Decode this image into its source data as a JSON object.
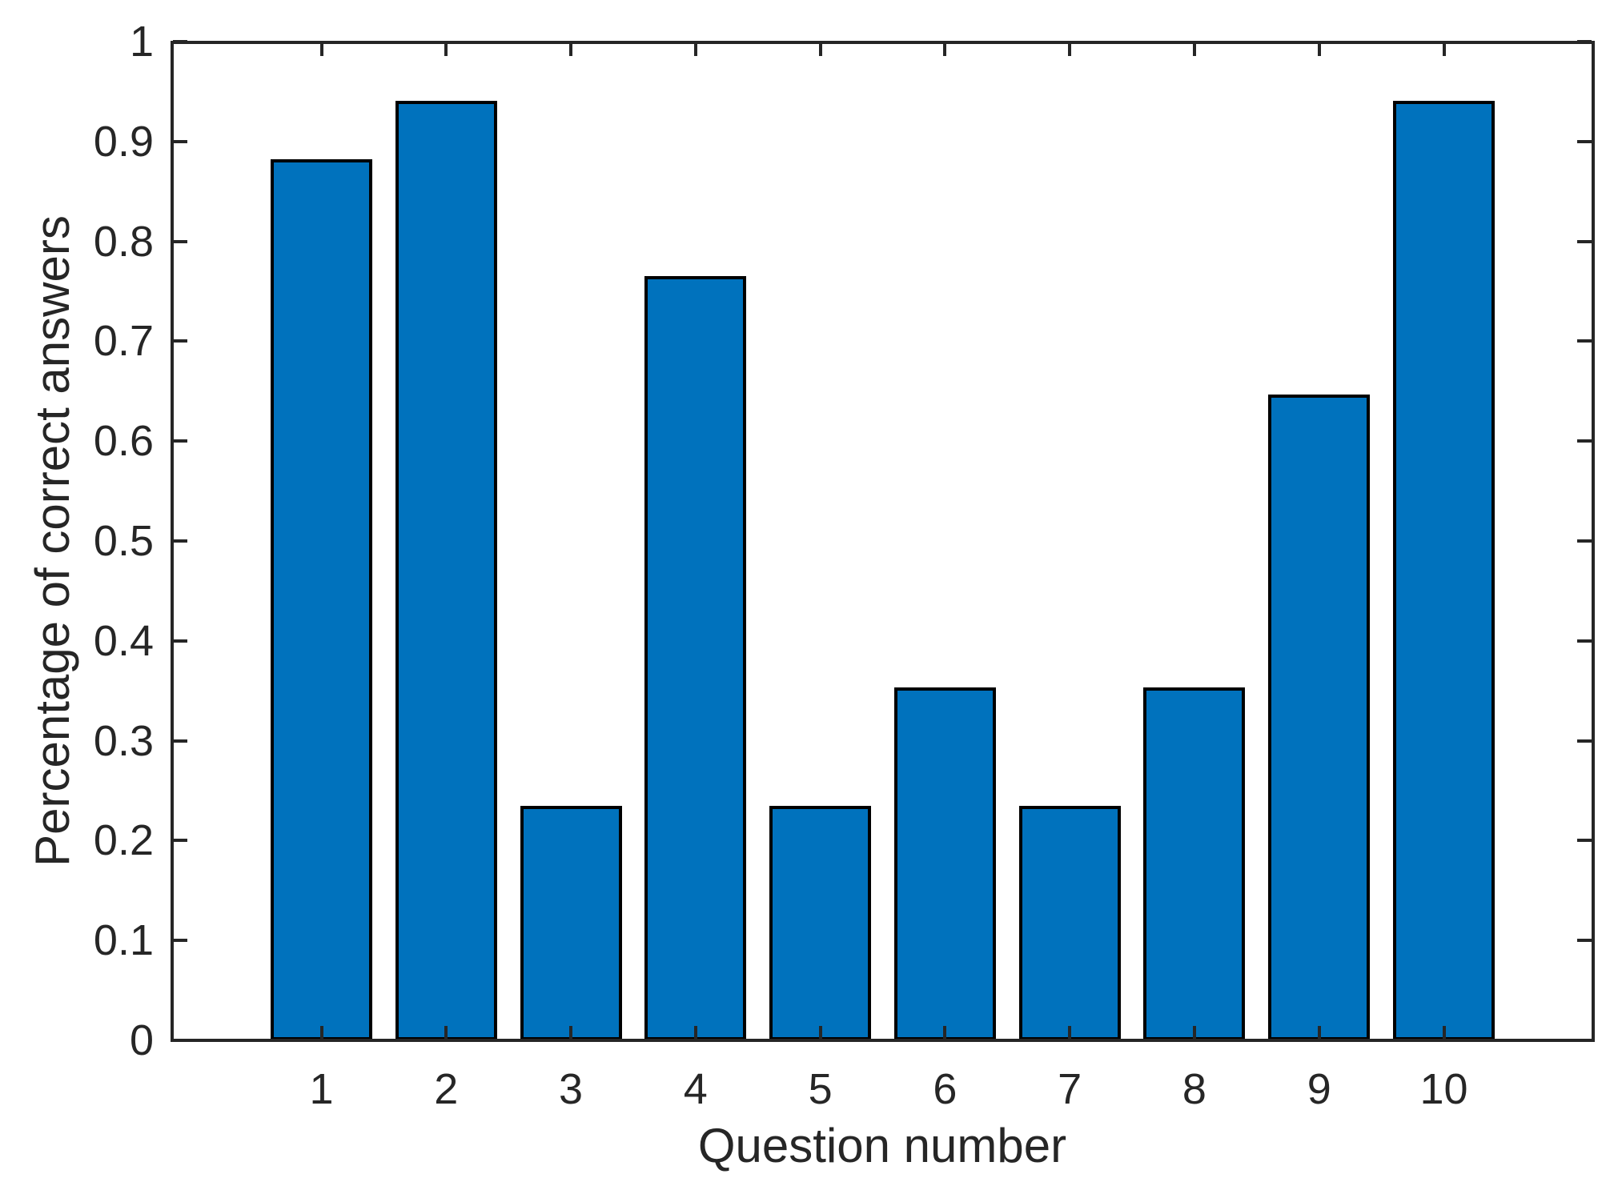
{
  "figure": {
    "background": "#ffffff"
  },
  "chart_data": {
    "type": "bar",
    "title": "",
    "categories": [
      "1",
      "2",
      "3",
      "4",
      "5",
      "6",
      "7",
      "8",
      "9",
      "10"
    ],
    "values": [
      0.882,
      0.941,
      0.235,
      0.765,
      0.235,
      0.353,
      0.235,
      0.353,
      0.647,
      0.941
    ],
    "xlabel": "Question number",
    "ylabel": "Percentage of correct answers",
    "ylim": [
      0,
      1
    ],
    "ytick_labels": [
      "0",
      "0.1",
      "0.2",
      "0.3",
      "0.4",
      "0.5",
      "0.6",
      "0.7",
      "0.8",
      "0.9",
      "1"
    ],
    "xtick_labels": [
      "1",
      "2",
      "3",
      "4",
      "5",
      "6",
      "7",
      "8",
      "9",
      "10"
    ],
    "grid": false,
    "legend": null,
    "box": true,
    "bar_fill_color": "#0072BD",
    "bar_edge_color": "#000000",
    "axis_color": "#262626"
  }
}
